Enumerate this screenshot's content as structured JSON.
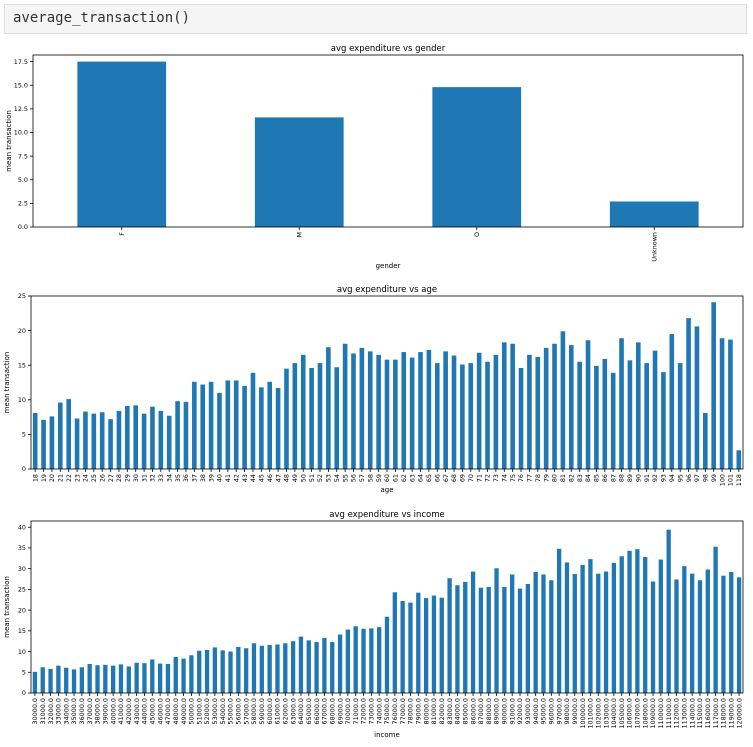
{
  "cell": {
    "code": "average_transaction()"
  },
  "colors": {
    "bar": "#1f77b4",
    "axis": "#000000"
  },
  "chart_data": [
    {
      "type": "bar",
      "title": "avg expenditure vs gender",
      "xlabel": "gender",
      "ylabel": "mean transaction",
      "ylim": [
        0,
        18.2
      ],
      "yticks": [
        "0.0",
        "2.5",
        "5.0",
        "7.5",
        "10.0",
        "12.5",
        "15.0",
        "17.5"
      ],
      "categories": [
        "F",
        "M",
        "O",
        "Unknown"
      ],
      "values": [
        17.5,
        11.6,
        14.8,
        2.7
      ]
    },
    {
      "type": "bar",
      "title": "avg expenditure vs age",
      "xlabel": "age",
      "ylabel": "mean transaction",
      "ylim": [
        0,
        25
      ],
      "yticks": [
        "0",
        "5",
        "10",
        "15",
        "20",
        "25"
      ],
      "categories": [
        "18",
        "19",
        "20",
        "21",
        "22",
        "23",
        "24",
        "25",
        "26",
        "27",
        "28",
        "29",
        "30",
        "31",
        "32",
        "33",
        "34",
        "35",
        "36",
        "37",
        "38",
        "39",
        "40",
        "41",
        "42",
        "43",
        "44",
        "45",
        "46",
        "47",
        "48",
        "49",
        "50",
        "51",
        "52",
        "53",
        "54",
        "55",
        "56",
        "57",
        "58",
        "59",
        "60",
        "61",
        "62",
        "63",
        "64",
        "65",
        "66",
        "67",
        "68",
        "69",
        "70",
        "71",
        "72",
        "73",
        "74",
        "75",
        "76",
        "77",
        "78",
        "79",
        "80",
        "81",
        "82",
        "83",
        "84",
        "85",
        "86",
        "87",
        "88",
        "89",
        "90",
        "91",
        "92",
        "93",
        "94",
        "95",
        "96",
        "97",
        "98",
        "99",
        "100",
        "101",
        "118"
      ],
      "values": [
        8.1,
        7.1,
        7.6,
        9.6,
        10.1,
        7.3,
        8.3,
        8.0,
        8.2,
        7.2,
        8.4,
        9.1,
        9.2,
        8.0,
        9.0,
        8.4,
        7.7,
        9.8,
        9.7,
        12.6,
        12.2,
        12.6,
        11.0,
        12.8,
        12.8,
        12.0,
        13.9,
        11.8,
        12.6,
        11.7,
        14.5,
        15.3,
        16.5,
        14.6,
        15.3,
        17.6,
        14.7,
        18.1,
        16.7,
        17.5,
        17.0,
        16.5,
        15.8,
        15.8,
        16.9,
        16.1,
        16.9,
        17.2,
        15.3,
        17.0,
        16.4,
        15.1,
        15.3,
        16.8,
        15.5,
        16.5,
        18.3,
        18.1,
        14.6,
        16.5,
        16.2,
        17.5,
        18.1,
        19.9,
        17.9,
        15.5,
        18.6,
        14.9,
        15.9,
        13.9,
        18.9,
        15.7,
        18.3,
        15.3,
        17.1,
        14.0,
        19.5,
        15.3,
        21.8,
        20.6,
        8.1,
        24.1,
        18.9,
        18.7,
        2.7
      ]
    },
    {
      "type": "bar",
      "title": "avg expenditure vs income",
      "xlabel": "income",
      "ylabel": "mean transaction",
      "ylim": [
        0,
        41.5
      ],
      "yticks": [
        "0",
        "5",
        "10",
        "15",
        "20",
        "25",
        "30",
        "35",
        "40"
      ],
      "categories": [
        "30000.0",
        "31000.0",
        "32000.0",
        "33000.0",
        "34000.0",
        "35000.0",
        "36000.0",
        "37000.0",
        "38000.0",
        "39000.0",
        "40000.0",
        "41000.0",
        "42000.0",
        "43000.0",
        "44000.0",
        "45000.0",
        "46000.0",
        "47000.0",
        "48000.0",
        "49000.0",
        "50000.0",
        "51000.0",
        "52000.0",
        "53000.0",
        "54000.0",
        "55000.0",
        "56000.0",
        "57000.0",
        "58000.0",
        "59000.0",
        "60000.0",
        "61000.0",
        "62000.0",
        "63000.0",
        "64000.0",
        "65000.0",
        "66000.0",
        "67000.0",
        "68000.0",
        "69000.0",
        "70000.0",
        "71000.0",
        "72000.0",
        "73000.0",
        "74000.0",
        "75000.0",
        "76000.0",
        "77000.0",
        "78000.0",
        "79000.0",
        "80000.0",
        "81000.0",
        "82000.0",
        "83000.0",
        "84000.0",
        "85000.0",
        "86000.0",
        "87000.0",
        "88000.0",
        "89000.0",
        "90000.0",
        "91000.0",
        "92000.0",
        "93000.0",
        "94000.0",
        "95000.0",
        "96000.0",
        "97000.0",
        "98000.0",
        "99000.0",
        "100000.0",
        "101000.0",
        "102000.0",
        "103000.0",
        "104000.0",
        "105000.0",
        "106000.0",
        "107000.0",
        "108000.0",
        "109000.0",
        "110000.0",
        "111000.0",
        "112000.0",
        "113000.0",
        "114000.0",
        "115000.0",
        "116000.0",
        "117000.0",
        "118000.0",
        "119000.0",
        "120000.0"
      ],
      "values": [
        5.1,
        6.2,
        5.8,
        6.6,
        6.1,
        5.7,
        6.2,
        7.0,
        6.7,
        6.8,
        6.6,
        6.9,
        6.4,
        7.3,
        7.2,
        8.1,
        7.1,
        7.0,
        8.7,
        8.3,
        9.1,
        10.2,
        10.4,
        11.0,
        10.3,
        10.0,
        11.1,
        10.8,
        12.0,
        11.4,
        11.6,
        11.7,
        12.0,
        12.5,
        13.6,
        12.7,
        12.3,
        13.3,
        12.3,
        14.1,
        15.3,
        16.1,
        15.5,
        15.6,
        15.9,
        18.4,
        24.3,
        22.2,
        21.8,
        24.2,
        22.9,
        23.5,
        23.0,
        27.7,
        26.0,
        26.8,
        29.3,
        25.4,
        25.6,
        30.1,
        25.6,
        28.6,
        25.2,
        26.3,
        29.2,
        28.6,
        27.2,
        34.8,
        31.5,
        28.7,
        30.9,
        32.3,
        28.8,
        29.3,
        31.4,
        33.0,
        34.3,
        34.7,
        32.8,
        26.9,
        32.2,
        39.4,
        27.4,
        30.6,
        28.8,
        27.2,
        29.8,
        35.3,
        28.3,
        29.2,
        27.9
      ]
    }
  ]
}
